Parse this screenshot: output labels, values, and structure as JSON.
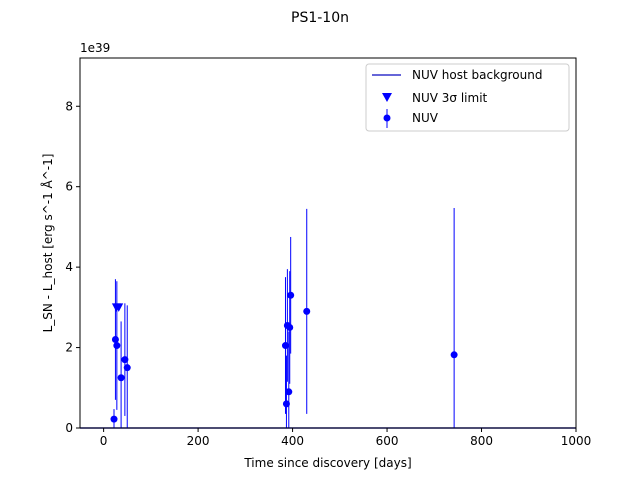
{
  "chart_data": {
    "type": "scatter",
    "title": "PS1-10n",
    "xlabel": "Time since discovery [days]",
    "ylabel": "L_SN - L_host [erg s^-1 Å^-1]",
    "y_offset_label": "1e39",
    "xlim": [
      -50,
      1000
    ],
    "ylim": [
      0,
      9.2
    ],
    "y_scale_note": "values in units of 1e39",
    "xticks": [
      0,
      200,
      400,
      600,
      800,
      1000
    ],
    "yticks": [
      0,
      2,
      4,
      6,
      8
    ],
    "grid": false,
    "legend_position": "upper right",
    "colors": {
      "series": "#0000ff",
      "host": "#3333cc"
    },
    "series": [
      {
        "name": "NUV host background",
        "kind": "line",
        "x": [
          -50,
          1000
        ],
        "y": [
          0,
          0
        ]
      },
      {
        "name": "NUV 3σ limit",
        "kind": "upper-limit",
        "x": [
          27,
          32
        ],
        "y": [
          3.0,
          3.0
        ]
      },
      {
        "name": "NUV",
        "kind": "errorbar",
        "points": [
          {
            "x": 22,
            "y": 0.22,
            "err": 0.25
          },
          {
            "x": 25,
            "y": 2.2,
            "err": 1.5
          },
          {
            "x": 28,
            "y": 2.05,
            "err": 1.6
          },
          {
            "x": 37,
            "y": 1.25,
            "err": 1.4
          },
          {
            "x": 45,
            "y": 1.7,
            "err": 1.4
          },
          {
            "x": 50,
            "y": 1.5,
            "err": 1.55
          },
          {
            "x": 385,
            "y": 2.05,
            "err": 1.7
          },
          {
            "x": 387,
            "y": 0.6,
            "err": 1.2
          },
          {
            "x": 389,
            "y": 2.55,
            "err": 1.4
          },
          {
            "x": 392,
            "y": 0.9,
            "err": 1.5
          },
          {
            "x": 394,
            "y": 2.5,
            "err": 1.4
          },
          {
            "x": 396,
            "y": 3.3,
            "err": 1.45
          },
          {
            "x": 430,
            "y": 2.9,
            "err": 2.55
          },
          {
            "x": 742,
            "y": 1.82,
            "err": 3.65
          }
        ]
      }
    ]
  }
}
